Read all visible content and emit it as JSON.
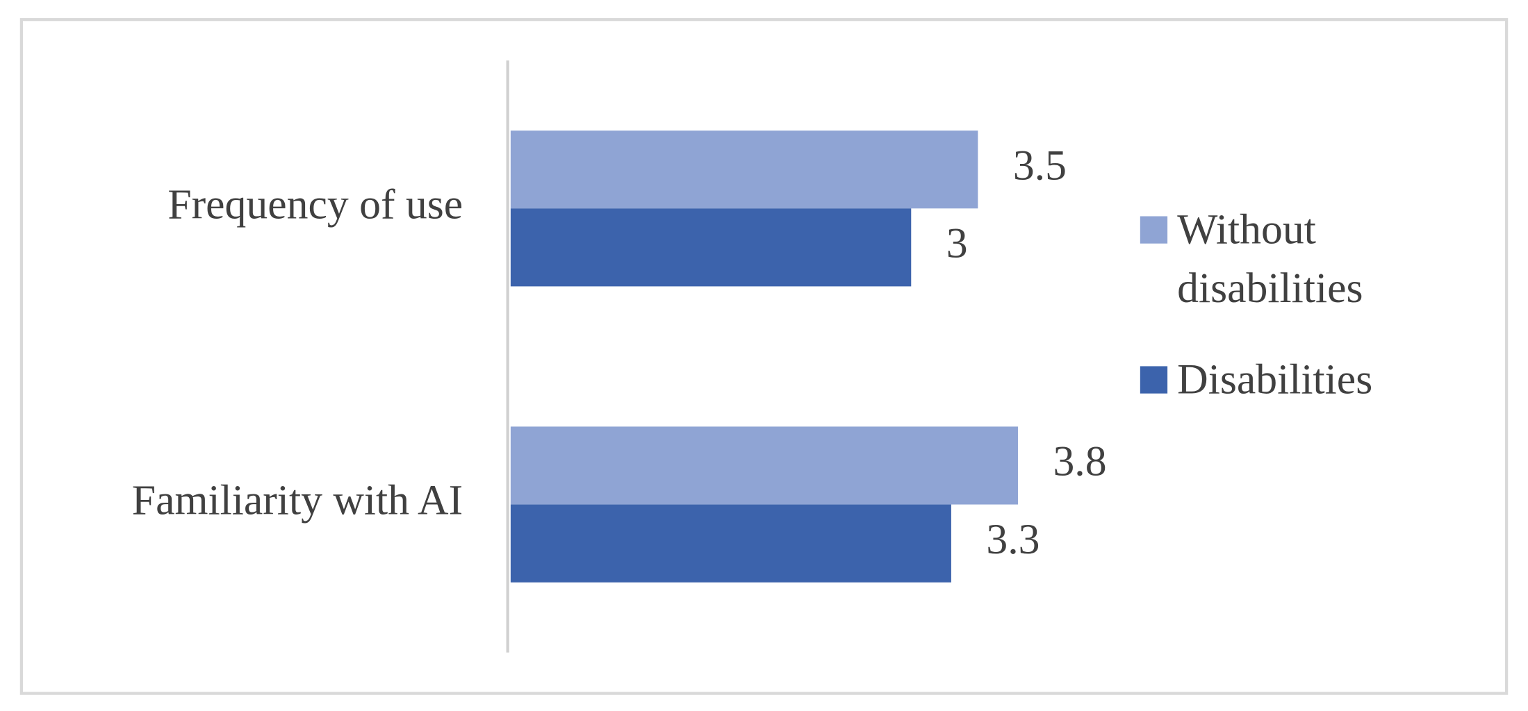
{
  "chart_data": {
    "type": "barh",
    "categories": [
      "Frequency of use",
      "Familiarity with AI"
    ],
    "series": [
      {
        "name": "Without disabilities",
        "color": "#8fa4d4",
        "values": [
          3.5,
          3.8
        ]
      },
      {
        "name": "Disabilities",
        "color": "#3c63ac",
        "values": [
          3,
          3.3
        ]
      }
    ],
    "legend": "right"
  }
}
